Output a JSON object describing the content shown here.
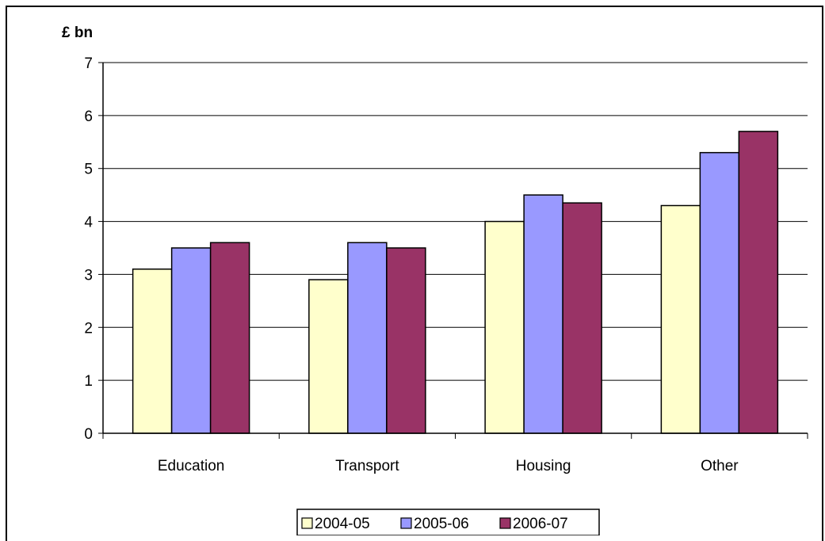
{
  "chart_data": {
    "type": "bar",
    "unit_label": "£ bn",
    "categories": [
      "Education",
      "Transport",
      "Housing",
      "Other"
    ],
    "series": [
      {
        "name": "2004-05",
        "values": [
          3.1,
          2.9,
          4.0,
          4.3
        ],
        "color": "#FFFFCC"
      },
      {
        "name": "2005-06",
        "values": [
          3.5,
          3.6,
          4.5,
          5.3
        ],
        "color": "#9999FF"
      },
      {
        "name": "2006-07",
        "values": [
          3.6,
          3.5,
          4.35,
          5.7
        ],
        "color": "#993366"
      }
    ],
    "ylim": [
      0,
      7
    ],
    "yticks": [
      "0",
      "1",
      "2",
      "3",
      "4",
      "5",
      "6",
      "7"
    ],
    "grid": true,
    "legend_position": "bottom"
  }
}
